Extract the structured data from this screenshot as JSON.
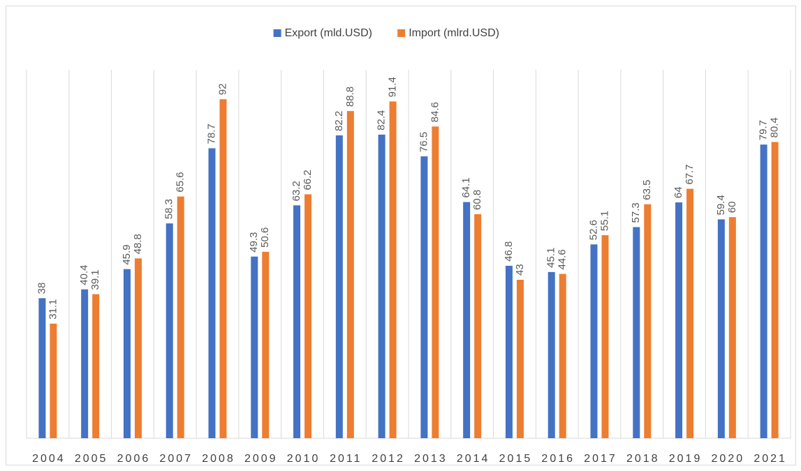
{
  "chart_data": {
    "type": "bar",
    "categories": [
      "2004",
      "2005",
      "2006",
      "2007",
      "2008",
      "2009",
      "2010",
      "2011",
      "2012",
      "2013",
      "2014",
      "2015",
      "2016",
      "2017",
      "2018",
      "2019",
      "2020",
      "2021"
    ],
    "series": [
      {
        "name": "Export (mld.USD)",
        "color": "#4472c4",
        "values": [
          38,
          40.4,
          45.9,
          58.3,
          78.7,
          49.3,
          63.2,
          82.2,
          82.4,
          76.5,
          64.1,
          46.8,
          45.1,
          52.6,
          57.3,
          64,
          59.4,
          79.7
        ]
      },
      {
        "name": "Import (mlrd.USD)",
        "color": "#ed7d31",
        "values": [
          31.1,
          39.1,
          48.8,
          65.6,
          92,
          50.6,
          66.2,
          88.8,
          91.4,
          84.6,
          60.8,
          43,
          44.6,
          55.1,
          63.5,
          67.7,
          60,
          80.4
        ]
      }
    ],
    "ylim": [
      0,
      100
    ],
    "legend": "top",
    "data_labels": true,
    "grid": true
  }
}
